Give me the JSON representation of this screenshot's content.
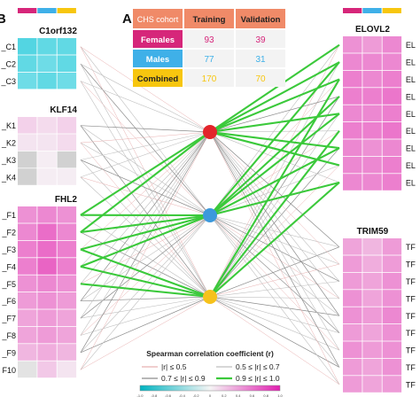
{
  "panel_labels": {
    "a": "A",
    "b": "B"
  },
  "colors": {
    "females": "#d6267a",
    "males": "#3fb0e8",
    "combined": "#f7c60f",
    "cohort_header": "#f08a68",
    "node_top": "#e3242b",
    "node_mid": "#3c99dc",
    "node_bot": "#f6c21b",
    "edge_weak": "#e8b0b0",
    "edge_mid": "#bfbfbf",
    "edge_strong": "#8c8c8c",
    "edge_top": "#3bc93b"
  },
  "cohort_table": {
    "header": {
      "label": "CHS cohort",
      "training": "Training",
      "validation": "Validation"
    },
    "rows": [
      {
        "name": "Females",
        "training": "93",
        "validation": "39",
        "color_key": "females"
      },
      {
        "name": "Males",
        "training": "77",
        "validation": "31",
        "color_key": "males"
      },
      {
        "name": "Combined",
        "training": "170",
        "validation": "70",
        "color_key": "combined"
      }
    ]
  },
  "left_genes": [
    {
      "title": "C1orf132",
      "heat": "cyan",
      "rows": [
        {
          "label": "_C1",
          "values": [
            0.55,
            0.5,
            0.5
          ]
        },
        {
          "label": "_C2",
          "values": [
            0.5,
            0.45,
            0.5
          ]
        },
        {
          "label": "_C3",
          "values": [
            0.45,
            0.5,
            0.45
          ]
        }
      ]
    },
    {
      "title": "KLF14",
      "heat": "mixed",
      "rows": [
        {
          "label": "_K1",
          "values": [
            0.2,
            0.15,
            0.2
          ]
        },
        {
          "label": "_K2",
          "values": [
            0.1,
            0.1,
            0.15
          ]
        },
        {
          "label": "_K3",
          "values": [
            -0.1,
            0.05,
            -0.1
          ]
        },
        {
          "label": "_K4",
          "values": [
            -0.1,
            0.05,
            0.05
          ]
        }
      ]
    },
    {
      "title": "FHL2",
      "heat": "magenta",
      "rows": [
        {
          "label": "_F1",
          "values": [
            0.55,
            0.6,
            0.55
          ]
        },
        {
          "label": "_F2",
          "values": [
            0.6,
            0.75,
            0.6
          ]
        },
        {
          "label": "_F3",
          "values": [
            0.65,
            0.75,
            0.65
          ]
        },
        {
          "label": "_F4",
          "values": [
            0.65,
            0.8,
            0.65
          ]
        },
        {
          "label": "_F5",
          "values": [
            0.55,
            0.6,
            0.55
          ]
        },
        {
          "label": "_F6",
          "values": [
            0.5,
            0.55,
            0.5
          ]
        },
        {
          "label": "_F7",
          "values": [
            0.45,
            0.5,
            0.45
          ]
        },
        {
          "label": "_F8",
          "values": [
            0.45,
            0.5,
            0.45
          ]
        },
        {
          "label": "_F9",
          "values": [
            0.35,
            0.4,
            0.35
          ]
        },
        {
          "label": "F10",
          "values": [
            -0.05,
            0.25,
            0.1
          ]
        }
      ]
    }
  ],
  "right_genes": [
    {
      "title": "ELOVL2",
      "heat": "magenta",
      "rows": [
        {
          "label": "EL",
          "values": [
            0.55,
            0.5,
            0.6
          ]
        },
        {
          "label": "EL",
          "values": [
            0.6,
            0.6,
            0.6
          ]
        },
        {
          "label": "EL",
          "values": [
            0.65,
            0.6,
            0.65
          ]
        },
        {
          "label": "EL",
          "values": [
            0.65,
            0.65,
            0.7
          ]
        },
        {
          "label": "EL",
          "values": [
            0.6,
            0.6,
            0.65
          ]
        },
        {
          "label": "EL",
          "values": [
            0.65,
            0.65,
            0.7
          ]
        },
        {
          "label": "EL",
          "values": [
            0.6,
            0.55,
            0.6
          ]
        },
        {
          "label": "EL",
          "values": [
            0.6,
            0.6,
            0.65
          ]
        },
        {
          "label": "EL",
          "values": [
            0.6,
            0.6,
            0.65
          ]
        }
      ]
    },
    {
      "title": "TRIM59",
      "heat": "magenta",
      "rows": [
        {
          "label": "TF",
          "values": [
            0.45,
            0.35,
            0.5
          ]
        },
        {
          "label": "TF",
          "values": [
            0.5,
            0.4,
            0.5
          ]
        },
        {
          "label": "TF",
          "values": [
            0.5,
            0.45,
            0.55
          ]
        },
        {
          "label": "TF",
          "values": [
            0.55,
            0.45,
            0.55
          ]
        },
        {
          "label": "TF",
          "values": [
            0.55,
            0.5,
            0.6
          ]
        },
        {
          "label": "TF",
          "values": [
            0.5,
            0.45,
            0.55
          ]
        },
        {
          "label": "TF",
          "values": [
            0.55,
            0.5,
            0.55
          ]
        },
        {
          "label": "TF",
          "values": [
            0.5,
            0.45,
            0.55
          ]
        },
        {
          "label": "TF",
          "values": [
            0.5,
            0.45,
            0.5
          ]
        }
      ]
    }
  ],
  "network": {
    "green_links": [
      {
        "side": "left",
        "gene": 2,
        "row": 0,
        "node": 0
      },
      {
        "side": "left",
        "gene": 2,
        "row": 0,
        "node": 1
      },
      {
        "side": "left",
        "gene": 2,
        "row": 1,
        "node": 0
      },
      {
        "side": "left",
        "gene": 2,
        "row": 1,
        "node": 1
      },
      {
        "side": "left",
        "gene": 2,
        "row": 2,
        "node": 1
      },
      {
        "side": "left",
        "gene": 2,
        "row": 2,
        "node": 2
      },
      {
        "side": "left",
        "gene": 2,
        "row": 3,
        "node": 1
      },
      {
        "side": "left",
        "gene": 2,
        "row": 3,
        "node": 2
      },
      {
        "side": "left",
        "gene": 2,
        "row": 4,
        "node": 2
      },
      {
        "side": "right",
        "gene": 0,
        "row": 0,
        "node": 0
      },
      {
        "side": "right",
        "gene": 0,
        "row": 1,
        "node": 0
      },
      {
        "side": "right",
        "gene": 0,
        "row": 1,
        "node": 1
      },
      {
        "side": "right",
        "gene": 0,
        "row": 2,
        "node": 0
      },
      {
        "side": "right",
        "gene": 0,
        "row": 2,
        "node": 2
      },
      {
        "side": "right",
        "gene": 0,
        "row": 3,
        "node": 1
      },
      {
        "side": "right",
        "gene": 0,
        "row": 4,
        "node": 0
      },
      {
        "side": "right",
        "gene": 0,
        "row": 4,
        "node": 1
      },
      {
        "side": "right",
        "gene": 0,
        "row": 5,
        "node": 2
      },
      {
        "side": "right",
        "gene": 0,
        "row": 6,
        "node": 0
      },
      {
        "side": "right",
        "gene": 0,
        "row": 6,
        "node": 1
      },
      {
        "side": "right",
        "gene": 0,
        "row": 7,
        "node": 0
      },
      {
        "side": "right",
        "gene": 0,
        "row": 8,
        "node": 1
      },
      {
        "side": "right",
        "gene": 0,
        "row": 8,
        "node": 2
      }
    ]
  },
  "legend": {
    "title": "Spearman correlation coefficient (r)",
    "items": [
      {
        "label": "|r| ≤ 0.5",
        "color_key": "edge_weak"
      },
      {
        "label": "0.5 ≤ |r| ≤ 0.7",
        "color_key": "edge_mid"
      },
      {
        "label": "0.7 ≤ |r| ≤ 0.9",
        "color_key": "edge_strong"
      },
      {
        "label": "0.9 ≤ |r| ≤ 1.0",
        "color_key": "edge_top"
      }
    ],
    "scale_ticks": [
      "-1.0",
      "-0.8",
      "-0.6",
      "-0.4",
      "-0.2",
      "0",
      "0.2",
      "0.4",
      "0.6",
      "0.8",
      "1.0"
    ]
  }
}
